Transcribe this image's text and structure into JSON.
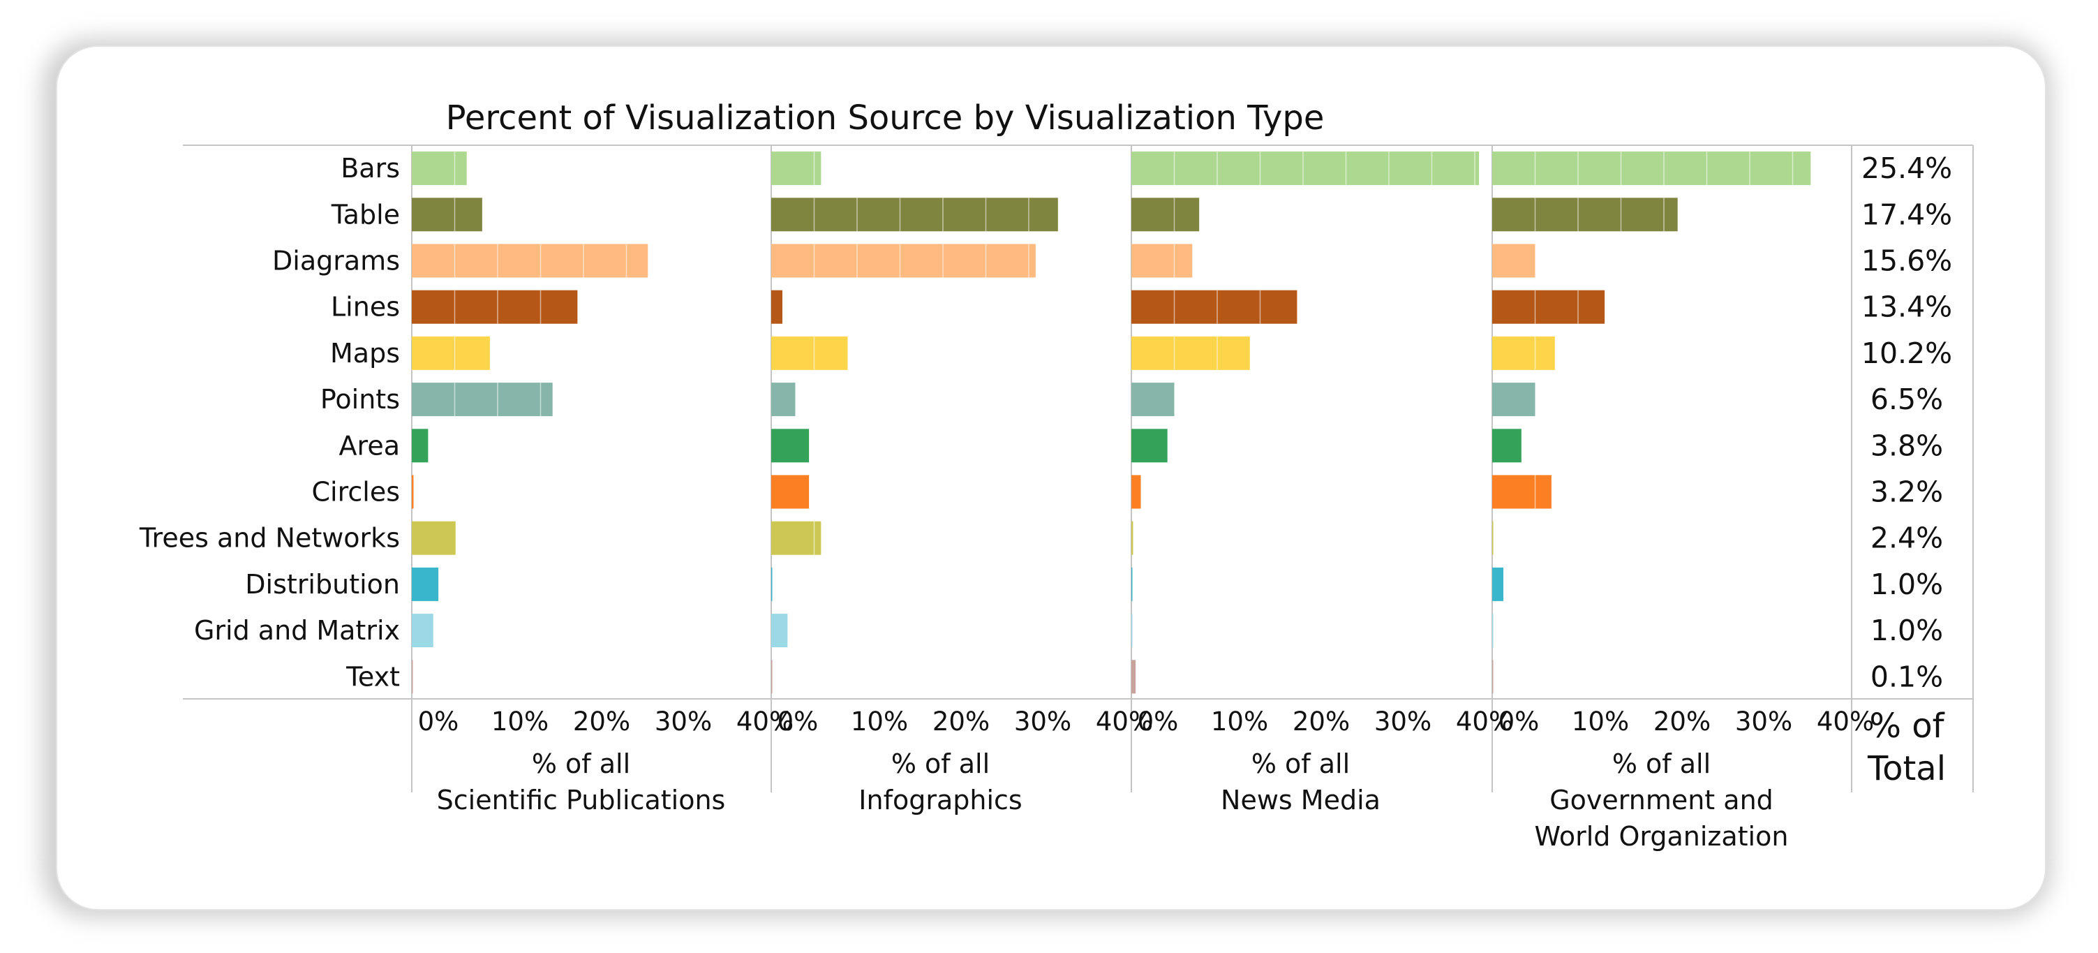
{
  "chart_data": {
    "type": "bar",
    "title": "Percent of Visualization Source by Visualization Type",
    "categories": [
      "Bars",
      "Table",
      "Diagrams",
      "Lines",
      "Maps",
      "Points",
      "Area",
      "Circles",
      "Trees and Networks",
      "Distribution",
      "Grid and Matrix",
      "Text"
    ],
    "series": [
      {
        "name": "Scientific Publications",
        "values": [
          6.4,
          8.2,
          27.5,
          19.3,
          9.1,
          16.4,
          1.9,
          0.2,
          5.1,
          3.1,
          2.5,
          0.1
        ],
        "axis_label_line1": "% of all",
        "axis_label_line2": "Scientific Publications"
      },
      {
        "name": "Infographics",
        "values": [
          5.8,
          33.4,
          30.8,
          1.3,
          8.9,
          2.8,
          4.4,
          4.4,
          5.8,
          0.1,
          1.9,
          0.1
        ],
        "axis_label_line1": "% of all",
        "axis_label_line2": "Infographics"
      },
      {
        "name": "News Media",
        "values": [
          40.5,
          7.9,
          7.1,
          19.3,
          13.8,
          5.0,
          4.2,
          1.1,
          0.2,
          0.1,
          0.1,
          0.5
        ],
        "axis_label_line1": "% of all",
        "axis_label_line2": "News Media"
      },
      {
        "name": "Government and World Organization",
        "values": [
          37.1,
          21.6,
          5.0,
          13.1,
          7.3,
          5.0,
          3.4,
          6.9,
          0.1,
          1.3,
          0.1,
          0.1
        ],
        "axis_label_line1": "% of all",
        "axis_label_line2": "Government and",
        "axis_label_line3": "World Organization"
      }
    ],
    "totals": [
      "25.4%",
      "17.4%",
      "15.6%",
      "13.4%",
      "10.2%",
      "6.5%",
      "3.8%",
      "3.2%",
      "2.4%",
      "1.0%",
      "1.0%",
      "0.1%"
    ],
    "totals_header_line1": "% of",
    "totals_header_line2": "Total",
    "x_ticks": [
      "0%",
      "10%",
      "20%",
      "30%",
      "40%"
    ],
    "xlim": [
      0,
      42
    ],
    "colors": [
      "#acd98f",
      "#7f843f",
      "#ffba80",
      "#b45717",
      "#fdd54b",
      "#86b5a9",
      "#34a259",
      "#fc7f23",
      "#cdc853",
      "#3ab6cc",
      "#9cd9e6",
      "#c8a39d"
    ],
    "grid": false,
    "legend": "none"
  }
}
